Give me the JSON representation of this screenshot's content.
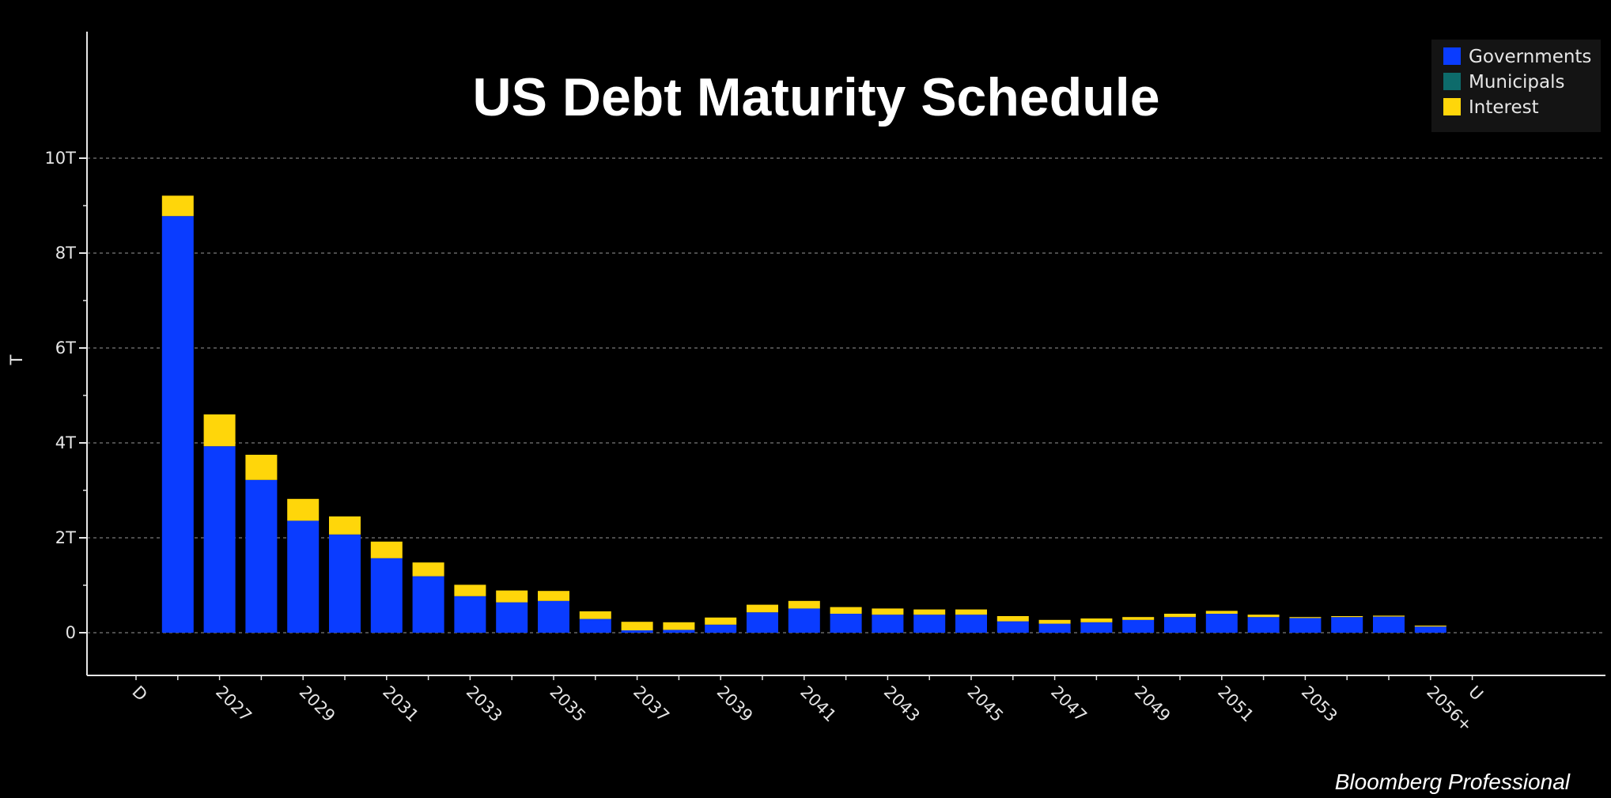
{
  "chart_data": {
    "type": "bar",
    "stacked": true,
    "title": "US Debt Maturity Schedule",
    "ylabel": "T",
    "ylim": [
      -0.9,
      10
    ],
    "y_ticks": [
      {
        "value": 10,
        "label": "10T"
      },
      {
        "value": 8,
        "label": "8T"
      },
      {
        "value": 6,
        "label": "6T"
      },
      {
        "value": 4,
        "label": "4T"
      },
      {
        "value": 2,
        "label": "2T"
      },
      {
        "value": 0,
        "label": "0"
      }
    ],
    "categories": [
      "D",
      "2026",
      "2027",
      "2028",
      "2029",
      "2030",
      "2031",
      "2032",
      "2033",
      "2034",
      "2035",
      "2036",
      "2037",
      "2038",
      "2039",
      "2040",
      "2041",
      "2042",
      "2043",
      "2044",
      "2045",
      "2046",
      "2047",
      "2048",
      "2049",
      "2050",
      "2051",
      "2052",
      "2053",
      "2054",
      "2055",
      "2056+",
      "U"
    ],
    "x_tick_labels": [
      "D",
      "2027",
      "2029",
      "2031",
      "2033",
      "2035",
      "2037",
      "2039",
      "2041",
      "2043",
      "2045",
      "2047",
      "2049",
      "2051",
      "2053",
      "2056+",
      "U"
    ],
    "series": [
      {
        "name": "Governments",
        "color": "#0a3cff",
        "values": [
          0,
          8.78,
          3.93,
          3.22,
          2.36,
          2.07,
          1.57,
          1.19,
          0.77,
          0.64,
          0.67,
          0.29,
          0.05,
          0.06,
          0.17,
          0.43,
          0.51,
          0.4,
          0.38,
          0.38,
          0.38,
          0.24,
          0.19,
          0.22,
          0.27,
          0.33,
          0.4,
          0.33,
          0.31,
          0.33,
          0.34,
          0.13,
          0
        ]
      },
      {
        "name": "Municipals",
        "color": "#0d6b6b",
        "values": [
          0,
          0,
          0,
          0,
          0,
          0,
          0,
          0,
          0,
          0,
          0,
          0,
          0,
          0,
          0,
          0,
          0,
          0,
          0,
          0,
          0,
          0,
          0,
          0,
          0,
          0,
          0,
          0,
          0,
          0,
          0,
          0,
          0
        ]
      },
      {
        "name": "Interest",
        "color": "#ffd60a",
        "values": [
          0,
          0.43,
          0.67,
          0.53,
          0.46,
          0.38,
          0.35,
          0.29,
          0.24,
          0.25,
          0.21,
          0.16,
          0.18,
          0.16,
          0.15,
          0.16,
          0.16,
          0.14,
          0.13,
          0.11,
          0.11,
          0.11,
          0.08,
          0.08,
          0.06,
          0.07,
          0.06,
          0.05,
          0.02,
          0.02,
          0.02,
          0.02,
          0
        ]
      }
    ],
    "legend_position": "top-right",
    "grid": true
  },
  "footer_text": "Bloomberg Professional"
}
